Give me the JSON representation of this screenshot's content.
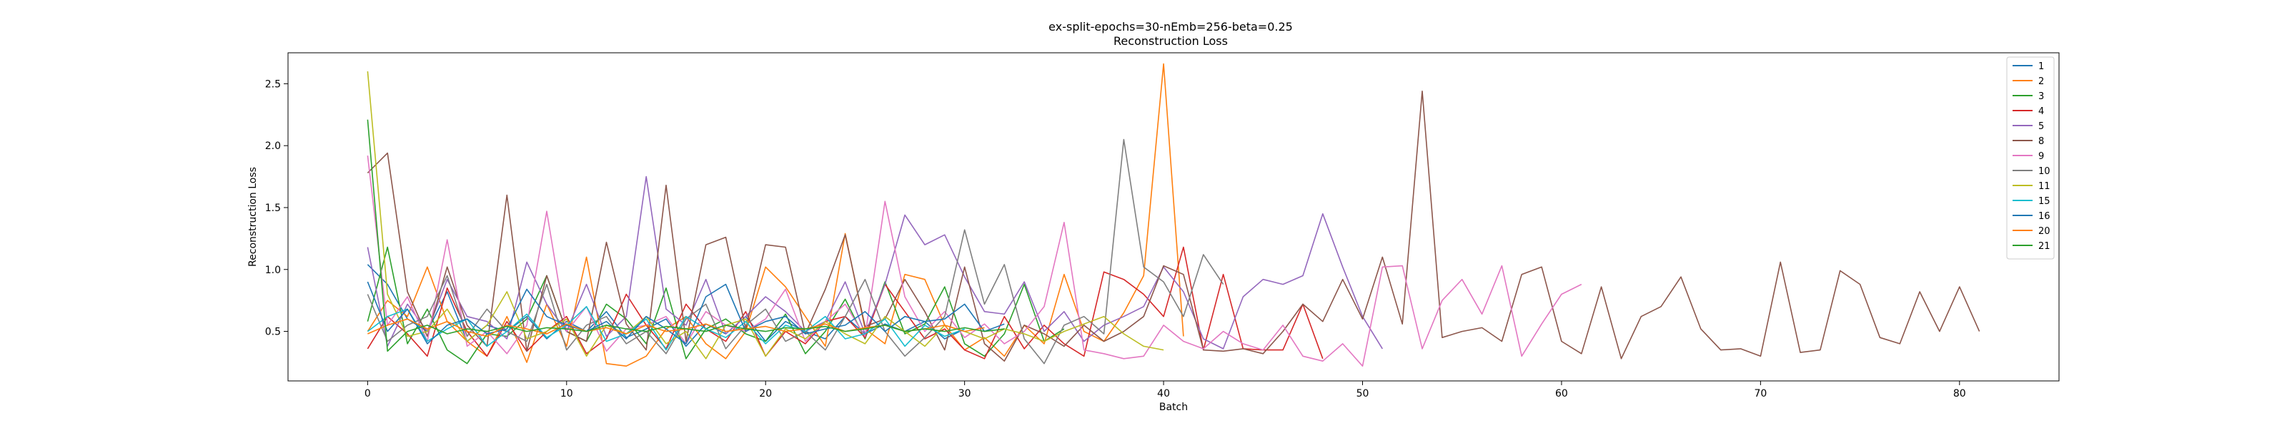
{
  "chart_data": {
    "type": "line",
    "title": "ex-split-epochs=30-nEmb=256-beta=0.25",
    "subtitle": "Reconstruction Loss",
    "xlabel": "Batch",
    "ylabel": "Reconstruction Loss",
    "xlim": [
      -4,
      85
    ],
    "ylim": [
      0.1,
      2.75
    ],
    "xticks": [
      0,
      10,
      20,
      30,
      40,
      50,
      60,
      70,
      80
    ],
    "yticks": [
      0.5,
      1.0,
      1.5,
      2.0,
      2.5
    ],
    "grid": false,
    "legend_position": "top-right",
    "series": [
      {
        "name": "1",
        "color": "#1f77b4",
        "values": [
          1.04,
          0.88,
          0.6,
          0.5,
          0.82,
          0.42,
          0.55,
          0.5,
          0.62,
          0.44,
          0.58,
          0.5,
          0.66,
          0.45,
          0.52,
          0.6,
          0.38,
          0.56,
          0.48,
          0.62,
          0.42,
          0.58,
          0.5,
          0.44,
          0.62,
          0.48,
          0.56,
          0.5,
          0.58,
          0.44,
          0.52
        ]
      },
      {
        "name": "2",
        "color": "#ff7f0e",
        "values": [
          0.5,
          0.75,
          0.62,
          1.02,
          0.58,
          0.42,
          0.3,
          0.62,
          0.25,
          0.72,
          0.38,
          1.1,
          0.24,
          0.22,
          0.3,
          0.52,
          0.62,
          0.4,
          0.28,
          0.5,
          1.02,
          0.86,
          0.62,
          0.38,
          1.29,
          0.52,
          0.4,
          0.96,
          0.92,
          0.55,
          0.35,
          0.45,
          0.3,
          0.55,
          0.4,
          0.96,
          0.5,
          0.42,
          0.65,
          0.95,
          2.66,
          0.46
        ]
      },
      {
        "name": "3",
        "color": "#2ca02c",
        "values": [
          0.58,
          1.18,
          0.4,
          0.68,
          0.35,
          0.24,
          0.48,
          0.46,
          0.6,
          0.95,
          0.5,
          0.42,
          0.72,
          0.6,
          0.4,
          0.85,
          0.28,
          0.52,
          0.6,
          0.48,
          0.42,
          0.64,
          0.32,
          0.5,
          0.76,
          0.44,
          0.9,
          0.48,
          0.56,
          0.86,
          0.4,
          0.3,
          0.48,
          0.88,
          0.42,
          0.52
        ]
      },
      {
        "name": "4",
        "color": "#d62728",
        "values": [
          0.36,
          0.62,
          0.48,
          0.3,
          0.85,
          0.5,
          0.3,
          0.58,
          0.34,
          0.5,
          0.62,
          0.32,
          0.44,
          0.8,
          0.55,
          0.36,
          0.72,
          0.52,
          0.42,
          0.66,
          0.3,
          0.5,
          0.4,
          0.58,
          0.62,
          0.45,
          0.88,
          0.66,
          0.44,
          0.52,
          0.35,
          0.28,
          0.62,
          0.36,
          0.55,
          0.4,
          0.3,
          0.98,
          0.92,
          0.8,
          0.62,
          1.18,
          0.35,
          0.96,
          0.36,
          0.35,
          0.35,
          0.72,
          0.28
        ]
      },
      {
        "name": "5",
        "color": "#9467bd",
        "values": [
          1.18,
          0.38,
          0.72,
          0.5,
          0.92,
          0.62,
          0.58,
          0.44,
          1.06,
          0.72,
          0.5,
          0.88,
          0.46,
          0.62,
          1.75,
          0.68,
          0.55,
          0.92,
          0.48,
          0.62,
          0.78,
          0.66,
          0.5,
          0.58,
          0.9,
          0.48,
          0.88,
          1.44,
          1.2,
          1.28,
          0.94,
          0.66,
          0.64,
          0.9,
          0.5,
          0.66,
          0.42,
          0.55,
          0.62,
          0.7,
          1.02,
          0.82,
          0.44,
          0.36,
          0.78,
          0.92,
          0.88,
          0.95,
          1.45,
          1.02,
          0.62,
          0.36
        ]
      },
      {
        "name": "8",
        "color": "#8c564b",
        "values": [
          1.78,
          1.94,
          0.82,
          0.46,
          1.02,
          0.55,
          0.38,
          1.6,
          0.34,
          0.95,
          0.5,
          0.42,
          1.22,
          0.56,
          0.35,
          1.68,
          0.42,
          1.2,
          1.26,
          0.52,
          1.2,
          1.18,
          0.48,
          0.84,
          1.28,
          0.54,
          0.6,
          0.92,
          0.66,
          0.35,
          1.02,
          0.4,
          0.26,
          0.55,
          0.48,
          0.38,
          0.55,
          0.42,
          0.5,
          0.62,
          1.03,
          0.96,
          0.35,
          0.34,
          0.36,
          0.32,
          0.5,
          0.72,
          0.58,
          0.92,
          0.6,
          1.1,
          0.56,
          2.44,
          0.45,
          0.5,
          0.53,
          0.42,
          0.96,
          1.02,
          0.42,
          0.32,
          0.86,
          0.28,
          0.62,
          0.7,
          0.94,
          0.52,
          0.35,
          0.36,
          0.3,
          1.06,
          0.33,
          0.35,
          0.99,
          0.88,
          0.45,
          0.4,
          0.82,
          0.5,
          0.86,
          0.5
        ]
      },
      {
        "name": "9",
        "color": "#e377c2",
        "values": [
          1.92,
          0.55,
          0.78,
          0.42,
          1.24,
          0.38,
          0.5,
          0.32,
          0.55,
          1.47,
          0.5,
          0.7,
          0.34,
          0.52,
          0.55,
          0.62,
          0.4,
          0.66,
          0.55,
          0.5,
          0.6,
          0.84,
          0.42,
          0.58,
          0.72,
          0.46,
          1.55,
          0.78,
          0.5,
          0.66,
          0.45,
          0.56,
          0.4,
          0.5,
          0.7,
          1.38,
          0.35,
          0.32,
          0.28,
          0.3,
          0.55,
          0.42,
          0.36,
          0.5,
          0.4,
          0.35,
          0.55,
          0.3,
          0.26,
          0.4,
          0.22,
          1.02,
          1.03,
          0.36,
          0.75,
          0.92,
          0.64,
          1.03,
          0.3,
          0.56,
          0.8,
          0.88
        ]
      },
      {
        "name": "10",
        "color": "#7f7f7f",
        "values": [
          0.8,
          0.42,
          0.55,
          0.62,
          0.95,
          0.46,
          0.68,
          0.5,
          0.42,
          0.88,
          0.35,
          0.55,
          0.62,
          0.4,
          0.5,
          0.32,
          0.6,
          0.72,
          0.36,
          0.55,
          0.68,
          0.42,
          0.5,
          0.35,
          0.62,
          0.92,
          0.5,
          0.3,
          0.45,
          0.62,
          1.32,
          0.72,
          1.04,
          0.44,
          0.24,
          0.55,
          0.62,
          0.48,
          2.05,
          1.02,
          0.9,
          0.62,
          1.12,
          0.88
        ]
      },
      {
        "name": "11",
        "color": "#bcbd22",
        "values": [
          2.6,
          0.8,
          0.46,
          0.5,
          0.68,
          0.42,
          0.55,
          0.82,
          0.44,
          0.5,
          0.6,
          0.3,
          0.55,
          0.48,
          0.62,
          0.4,
          0.5,
          0.28,
          0.55,
          0.6,
          0.3,
          0.52,
          0.44,
          0.58,
          0.48,
          0.4,
          0.62,
          0.5,
          0.38,
          0.55,
          0.5,
          0.44,
          0.52,
          0.48,
          0.42,
          0.5,
          0.56,
          0.62,
          0.48,
          0.38,
          0.35
        ]
      },
      {
        "name": "15",
        "color": "#17becf",
        "values": [
          0.5,
          0.62,
          0.68,
          0.42,
          0.52,
          0.6,
          0.38,
          0.5,
          0.64,
          0.45,
          0.55,
          0.7,
          0.42,
          0.48,
          0.6,
          0.35,
          0.62,
          0.52,
          0.45,
          0.58,
          0.4,
          0.55,
          0.5,
          0.62,
          0.44,
          0.48,
          0.6,
          0.38,
          0.55,
          0.46,
          0.52
        ]
      },
      {
        "name": "16",
        "color": "#1f77b4",
        "values": [
          0.9,
          0.5,
          0.68,
          0.4,
          0.55,
          0.6,
          0.48,
          0.52,
          0.84,
          0.62,
          0.55,
          0.5,
          0.58,
          0.44,
          0.62,
          0.52,
          0.4,
          0.78,
          0.88,
          0.5,
          0.58,
          0.62,
          0.48,
          0.52,
          0.55,
          0.66,
          0.5,
          0.62,
          0.58,
          0.6,
          0.72,
          0.5,
          0.56
        ]
      },
      {
        "name": "20",
        "color": "#ff7f0e",
        "values": [
          0.48,
          0.55,
          0.6,
          0.52,
          0.58,
          0.5,
          0.46,
          0.55,
          0.52,
          0.48,
          0.56,
          0.5,
          0.53,
          0.48,
          0.55,
          0.5,
          0.52,
          0.56,
          0.5,
          0.52,
          0.54,
          0.5,
          0.52,
          0.56,
          0.5,
          0.53,
          0.55,
          0.5,
          0.52,
          0.55,
          0.5,
          0.53
        ]
      },
      {
        "name": "21",
        "color": "#2ca02c",
        "values": [
          2.21,
          0.34,
          0.5,
          0.55,
          0.48,
          0.52,
          0.5,
          0.54,
          0.5,
          0.53,
          0.52,
          0.5,
          0.55,
          0.52,
          0.5,
          0.54,
          0.52,
          0.5,
          0.55,
          0.52,
          0.5,
          0.53,
          0.52,
          0.54,
          0.5,
          0.52,
          0.55,
          0.5,
          0.52,
          0.5,
          0.53,
          0.5,
          0.52
        ]
      }
    ]
  }
}
